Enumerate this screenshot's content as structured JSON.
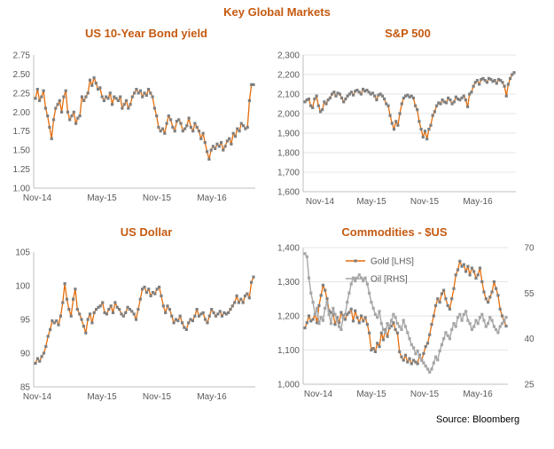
{
  "page_title": "Key Global Markets",
  "source": "Source: Bloomberg",
  "colors": {
    "title": "#c55a11",
    "line": "#e46c0a",
    "marker": "#7f7f7f",
    "secondary": "#a6a6a6"
  },
  "chart_data": [
    {
      "id": "bond",
      "type": "line",
      "title": "US 10-Year Bond yield",
      "xticks": [
        "Nov-14",
        "May-15",
        "Nov-15",
        "May-16"
      ],
      "yticks": [
        "1.00",
        "1.25",
        "1.50",
        "1.75",
        "2.00",
        "2.25",
        "2.50",
        "2.75"
      ],
      "ylim": [
        1.0,
        2.75
      ],
      "series": [
        {
          "name": "US 10-Year Bond yield",
          "values": [
            2.18,
            2.3,
            2.15,
            2.2,
            2.28,
            2.05,
            1.95,
            1.8,
            1.65,
            1.9,
            2.05,
            2.1,
            2.15,
            2.0,
            2.2,
            2.28,
            2.0,
            1.9,
            1.95,
            2.0,
            1.85,
            1.92,
            1.95,
            2.2,
            2.15,
            2.2,
            2.25,
            2.42,
            2.35,
            2.45,
            2.38,
            2.3,
            2.32,
            2.2,
            2.15,
            2.2,
            2.18,
            2.25,
            2.1,
            2.2,
            2.18,
            2.15,
            2.2,
            2.05,
            2.1,
            2.15,
            2.05,
            2.1,
            2.2,
            2.25,
            2.3,
            2.25,
            2.28,
            2.2,
            2.25,
            2.22,
            2.3,
            2.25,
            2.2,
            2.05,
            1.95,
            1.8,
            1.75,
            1.78,
            1.72,
            1.85,
            1.95,
            1.9,
            1.8,
            1.75,
            1.88,
            1.9,
            1.85,
            1.75,
            1.78,
            1.82,
            1.92,
            1.8,
            1.75,
            1.85,
            1.8,
            1.75,
            1.65,
            1.72,
            1.6,
            1.48,
            1.38,
            1.5,
            1.55,
            1.52,
            1.58,
            1.55,
            1.6,
            1.5,
            1.55,
            1.62,
            1.65,
            1.58,
            1.72,
            1.68,
            1.78,
            1.75,
            1.85,
            1.82,
            1.78,
            1.8,
            2.15,
            2.36,
            2.36
          ]
        }
      ]
    },
    {
      "id": "sp500",
      "type": "line",
      "title": "S&P 500",
      "xticks": [
        "Nov-14",
        "May-15",
        "Nov-15",
        "May-16"
      ],
      "yticks": [
        "1,600",
        "1,700",
        "1,800",
        "1,900",
        "2,000",
        "2,100",
        "2,200",
        "2,300"
      ],
      "ylim": [
        1600,
        2300
      ],
      "series": [
        {
          "name": "S&P 500",
          "values": [
            2060,
            2070,
            2075,
            2040,
            2030,
            2075,
            2090,
            2040,
            2010,
            2020,
            2060,
            2050,
            2070,
            2080,
            2100,
            2110,
            2090,
            2105,
            2100,
            2080,
            2060,
            2075,
            2090,
            2100,
            2110,
            2095,
            2115,
            2120,
            2110,
            2100,
            2125,
            2115,
            2120,
            2110,
            2100,
            2105,
            2090,
            2070,
            2095,
            2100,
            2090,
            2075,
            2050,
            2040,
            1990,
            1950,
            1920,
            1960,
            1940,
            2000,
            2050,
            2080,
            2090,
            2095,
            2085,
            2090,
            2080,
            2040,
            2020,
            1960,
            1920,
            1880,
            1910,
            1870,
            1920,
            1940,
            1990,
            2010,
            2040,
            2055,
            2050,
            2070,
            2060,
            2055,
            2080,
            2070,
            2050,
            2060,
            2085,
            2075,
            2070,
            2080,
            2090,
            2070,
            2035,
            2100,
            2110,
            2140,
            2160,
            2170,
            2150,
            2175,
            2180,
            2170,
            2160,
            2180,
            2175,
            2165,
            2170,
            2155,
            2175,
            2170,
            2160,
            2140,
            2090,
            2150,
            2180,
            2200,
            2210
          ]
        }
      ]
    },
    {
      "id": "usd",
      "type": "line",
      "title": "US Dollar",
      "xticks": [
        "Nov-14",
        "May-15",
        "Nov-15",
        "May-16"
      ],
      "yticks": [
        "85",
        "90",
        "95",
        "100",
        "105"
      ],
      "ylim": [
        85,
        105
      ],
      "series": [
        {
          "name": "US Dollar",
          "values": [
            88.5,
            89.2,
            88.8,
            89.5,
            90.0,
            91.0,
            92.5,
            93.5,
            94.8,
            94.5,
            94.8,
            94.2,
            95.5,
            97.5,
            100.3,
            98.0,
            96.5,
            95.5,
            98.0,
            99.5,
            96.5,
            95.8,
            95.0,
            94.0,
            93.0,
            95.0,
            95.8,
            94.5,
            96.0,
            96.5,
            96.8,
            97.0,
            97.5,
            96.0,
            95.8,
            96.5,
            97.0,
            96.0,
            97.5,
            96.8,
            96.5,
            95.8,
            95.5,
            96.0,
            96.8,
            96.5,
            96.2,
            95.8,
            95.0,
            96.5,
            98.0,
            99.5,
            99.8,
            99.0,
            99.5,
            98.5,
            99.0,
            98.8,
            99.5,
            99.8,
            98.5,
            97.0,
            96.0,
            97.0,
            96.5,
            95.5,
            94.5,
            95.0,
            94.8,
            95.5,
            94.5,
            93.8,
            93.5,
            94.5,
            95.0,
            94.8,
            95.5,
            96.5,
            95.5,
            95.8,
            96.0,
            95.0,
            94.5,
            95.5,
            96.5,
            96.0,
            95.5,
            95.8,
            96.2,
            95.5,
            96.0,
            95.8,
            96.0,
            96.5,
            97.0,
            97.5,
            98.5,
            97.5,
            98.0,
            97.5,
            98.5,
            98.8,
            98.2,
            100.5,
            101.3
          ]
        }
      ]
    },
    {
      "id": "commodities",
      "type": "line",
      "title": "Commodities - $US",
      "xticks": [
        "Nov-14",
        "May-15",
        "Nov-15",
        "May-16"
      ],
      "yticks_left": [
        "1,000",
        "1,100",
        "1,200",
        "1,300",
        "1,400"
      ],
      "yticks_right": [
        "25",
        "40",
        "55",
        "70"
      ],
      "ylim": [
        1000,
        1400
      ],
      "ylim_right": [
        25,
        70
      ],
      "legend": [
        "Gold [LHS]",
        "Oil [RHS]"
      ],
      "series": [
        {
          "name": "Gold [LHS]",
          "axis": "left",
          "values": [
            1165,
            1180,
            1200,
            1185,
            1190,
            1205,
            1180,
            1230,
            1260,
            1290,
            1275,
            1250,
            1215,
            1210,
            1205,
            1175,
            1195,
            1180,
            1210,
            1200,
            1190,
            1205,
            1210,
            1220,
            1185,
            1215,
            1195,
            1180,
            1200,
            1185,
            1195,
            1175,
            1150,
            1100,
            1105,
            1095,
            1120,
            1110,
            1150,
            1130,
            1160,
            1140,
            1165,
            1170,
            1180,
            1160,
            1150,
            1095,
            1080,
            1070,
            1085,
            1065,
            1075,
            1060,
            1070,
            1065,
            1060,
            1085,
            1070,
            1090,
            1110,
            1120,
            1145,
            1175,
            1200,
            1230,
            1250,
            1240,
            1265,
            1275,
            1250,
            1230,
            1220,
            1250,
            1280,
            1320,
            1335,
            1360,
            1345,
            1350,
            1330,
            1345,
            1320,
            1340,
            1330,
            1310,
            1320,
            1340,
            1300,
            1270,
            1250,
            1240,
            1255,
            1270,
            1300,
            1280,
            1260,
            1220,
            1200,
            1185,
            1170
          ]
        },
        {
          "name": "Oil [RHS]",
          "axis": "right",
          "values": [
            68,
            67,
            60,
            55,
            52,
            48,
            50,
            45,
            47,
            46,
            50,
            52,
            48,
            45,
            50,
            48,
            46,
            44,
            43,
            47,
            48,
            52,
            55,
            58,
            60,
            59,
            60,
            61,
            60,
            59,
            60,
            58,
            55,
            52,
            50,
            48,
            47,
            49,
            45,
            43,
            42,
            45,
            44,
            46,
            48,
            47,
            45,
            44,
            43,
            46,
            44,
            42,
            40,
            38,
            37,
            35,
            36,
            34,
            33,
            32,
            31,
            30,
            29,
            30,
            32,
            34,
            33,
            36,
            38,
            40,
            42,
            41,
            40,
            43,
            45,
            44,
            47,
            48,
            46,
            48,
            49,
            46,
            45,
            43,
            44,
            46,
            45,
            47,
            48,
            46,
            44,
            45,
            47,
            46,
            44,
            43,
            42,
            44,
            45,
            46,
            47
          ]
        }
      ]
    }
  ]
}
